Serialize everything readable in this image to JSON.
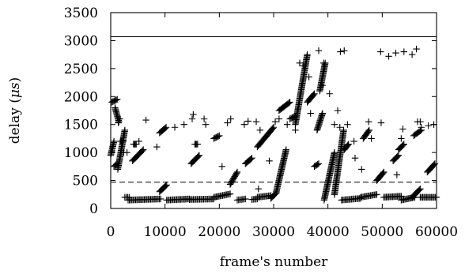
{
  "chart_data": {
    "type": "scatter",
    "title": "",
    "xlabel": "frame's number",
    "ylabel": "delay (μs)",
    "xlim": [
      0,
      60000
    ],
    "ylim": [
      0,
      3500
    ],
    "x_ticks": [
      0,
      10000,
      20000,
      30000,
      40000,
      50000,
      60000
    ],
    "y_ticks": [
      0,
      500,
      1000,
      1500,
      2000,
      2500,
      3000,
      3500
    ],
    "grid": false,
    "legend": "none",
    "marker": "plus",
    "reference_lines": [
      {
        "y": 3070,
        "style": "solid"
      },
      {
        "y": 470,
        "style": "dashed"
      }
    ],
    "series": [
      {
        "segments": [
          [
            0,
            950,
            600,
            1200
          ],
          [
            200,
            1900,
            1200,
            1950
          ],
          [
            800,
            1800,
            1500,
            1550
          ],
          [
            600,
            750,
            1200,
            800
          ],
          [
            1300,
            700,
            2600,
            1400
          ],
          [
            1800,
            1200,
            2300,
            1200
          ],
          [
            2600,
            200,
            3400,
            200
          ],
          [
            4000,
            850,
            6000,
            1050
          ],
          [
            4200,
            1150,
            4700,
            1150
          ],
          [
            3200,
            150,
            9200,
            170
          ],
          [
            9000,
            300,
            10300,
            420
          ],
          [
            9000,
            1350,
            10200,
            1450
          ],
          [
            10300,
            150,
            14500,
            170
          ],
          [
            14800,
            800,
            16300,
            950
          ],
          [
            15500,
            1150,
            16000,
            1150
          ],
          [
            14500,
            160,
            19000,
            170
          ],
          [
            19000,
            1250,
            20000,
            1300
          ],
          [
            19000,
            200,
            22000,
            260
          ],
          [
            22000,
            430,
            23300,
            650
          ],
          [
            23300,
            150,
            24800,
            170
          ],
          [
            24800,
            800,
            26000,
            900
          ],
          [
            26000,
            160,
            27000,
            170
          ],
          [
            27000,
            1100,
            30000,
            1450
          ],
          [
            27000,
            200,
            29500,
            230
          ],
          [
            29500,
            180,
            30500,
            280
          ],
          [
            30500,
            300,
            32300,
            1050
          ],
          [
            31000,
            1750,
            33000,
            1900
          ],
          [
            33000,
            1600,
            34000,
            1650
          ],
          [
            34000,
            1500,
            36200,
            2750
          ],
          [
            36200,
            1900,
            37500,
            2050
          ],
          [
            37500,
            750,
            38300,
            800
          ],
          [
            38000,
            1400,
            39000,
            1700
          ],
          [
            38500,
            2100,
            39500,
            2600
          ],
          [
            39300,
            150,
            41200,
            1000
          ],
          [
            41200,
            250,
            42900,
            1400
          ],
          [
            42500,
            150,
            46000,
            180
          ],
          [
            43000,
            1050,
            43800,
            1150
          ],
          [
            46500,
            1250,
            47600,
            1400
          ],
          [
            46000,
            200,
            49000,
            250
          ],
          [
            49000,
            500,
            50300,
            650
          ],
          [
            50300,
            200,
            53500,
            220
          ],
          [
            52000,
            850,
            53000,
            950
          ],
          [
            53000,
            1050,
            54000,
            1150
          ],
          [
            53500,
            150,
            56000,
            200
          ],
          [
            55500,
            200,
            57000,
            350
          ],
          [
            55800,
            1300,
            57200,
            1400
          ],
          [
            57000,
            200,
            60000,
            200
          ],
          [
            58300,
            650,
            59700,
            800
          ]
        ],
        "outliers": [
          [
            1400,
            1530
          ],
          [
            1700,
            1600
          ],
          [
            2400,
            1000
          ],
          [
            3000,
            1000
          ],
          [
            5200,
            1200
          ],
          [
            6500,
            1580
          ],
          [
            8500,
            1100
          ],
          [
            11800,
            1450
          ],
          [
            13500,
            1500
          ],
          [
            15000,
            1600
          ],
          [
            15200,
            1680
          ],
          [
            17200,
            1600
          ],
          [
            17500,
            1500
          ],
          [
            20500,
            750
          ],
          [
            21500,
            1530
          ],
          [
            22100,
            1600
          ],
          [
            24600,
            1500
          ],
          [
            25300,
            1560
          ],
          [
            26800,
            1550
          ],
          [
            27500,
            1400
          ],
          [
            29200,
            850
          ],
          [
            30300,
            1550
          ],
          [
            31000,
            1600
          ],
          [
            32500,
            1500
          ],
          [
            34000,
            1400
          ],
          [
            34800,
            2600
          ],
          [
            35500,
            2550
          ],
          [
            36500,
            2350
          ],
          [
            36800,
            1700
          ],
          [
            38300,
            2820
          ],
          [
            39000,
            2200
          ],
          [
            39200,
            2600
          ],
          [
            40300,
            2050
          ],
          [
            41200,
            1500
          ],
          [
            41800,
            1750
          ],
          [
            42200,
            1450
          ],
          [
            42300,
            2800
          ],
          [
            43000,
            2820
          ],
          [
            43600,
            1500
          ],
          [
            44800,
            1200
          ],
          [
            45000,
            900
          ],
          [
            47500,
            1550
          ],
          [
            48000,
            1250
          ],
          [
            49800,
            1530
          ],
          [
            49700,
            2800
          ],
          [
            51200,
            2720
          ],
          [
            52500,
            2780
          ],
          [
            53500,
            1250
          ],
          [
            53800,
            1420
          ],
          [
            54000,
            2800
          ],
          [
            55500,
            2750
          ],
          [
            56300,
            2850
          ],
          [
            56500,
            1550
          ],
          [
            57000,
            1550
          ],
          [
            57200,
            1450
          ],
          [
            58500,
            1480
          ],
          [
            59500,
            1500
          ],
          [
            52700,
            600
          ],
          [
            46200,
            700
          ],
          [
            27200,
            350
          ]
        ]
      }
    ]
  }
}
